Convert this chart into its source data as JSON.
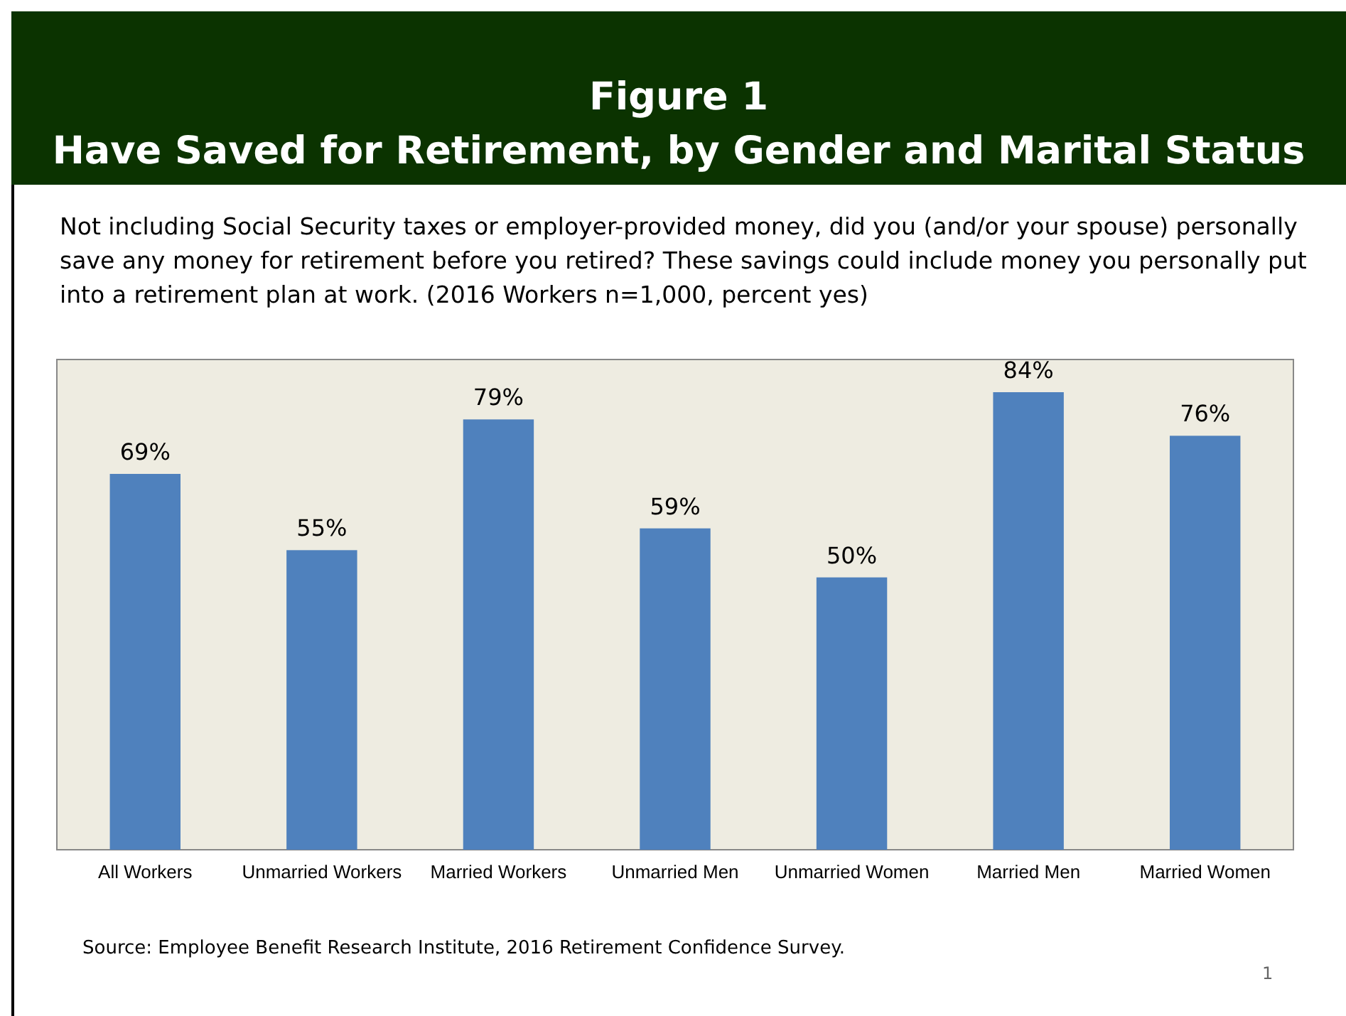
{
  "chart_data": {
    "type": "bar",
    "title": "Figure 1",
    "subtitle": "Have Saved for Retirement, by Gender and Marital Status",
    "annotations": [
      "Not including Social Security taxes or employer-provided money, did you (and/or your spouse) personally save any money for retirement before you retired?  These savings could include money you personally put into a retirement plan at work. (2016 Workers n=1,000, percent yes)",
      "Source:  Employee Benefit Research Institute, 2016 Retirement Confidence Survey.",
      "1"
    ],
    "categories": [
      "All Workers",
      "Unmarried Workers",
      "Married Workers",
      "Unmarried Men",
      "Unmarried Women",
      "Married Men",
      "Married Women"
    ],
    "values": [
      69,
      55,
      79,
      59,
      50,
      84,
      76
    ],
    "value_labels": [
      "69%",
      "55%",
      "79%",
      "59%",
      "50%",
      "84%",
      "76%"
    ],
    "color": "#4f81bd",
    "ylim": [
      0,
      90
    ],
    "tick_labels": "x"
  }
}
